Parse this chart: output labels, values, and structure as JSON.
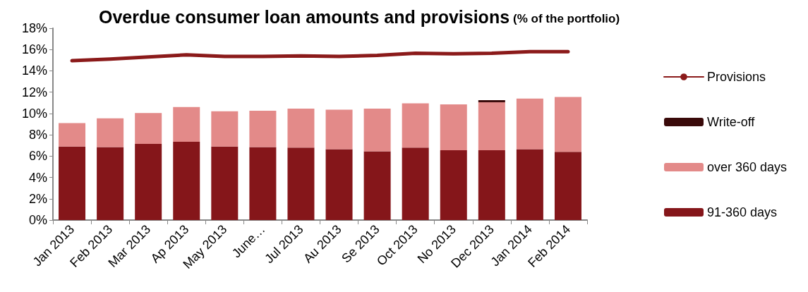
{
  "chart_data": {
    "type": "bar",
    "title": "Overdue consumer loan amounts and provisions",
    "subtitle": "(% of the portfolio)",
    "categories": [
      "Jan 2013",
      "Feb 2013",
      "Mar 2013",
      "Ap 2013",
      "May 2013",
      "June…",
      "Jul 2013",
      "Au 2013",
      "Se 2013",
      "Oct 2013",
      "No 2013",
      "Dec 2013",
      "Jan 2014",
      "Feb 2014"
    ],
    "stacked": true,
    "series": [
      {
        "name": "91-360 days",
        "color": "#85161a",
        "values": [
          6.9,
          6.85,
          7.15,
          7.35,
          6.9,
          6.85,
          6.8,
          6.65,
          6.45,
          6.8,
          6.55,
          6.55,
          6.65,
          6.4
        ]
      },
      {
        "name": "over 360 days",
        "color": "#e38a89",
        "values": [
          2.2,
          2.7,
          2.9,
          3.25,
          3.3,
          3.4,
          3.65,
          3.7,
          4.0,
          4.15,
          4.3,
          4.5,
          4.75,
          5.15
        ]
      },
      {
        "name": "Write-off",
        "color": "#3a0a0a",
        "values": [
          null,
          null,
          null,
          null,
          null,
          null,
          null,
          null,
          null,
          null,
          null,
          0.2,
          null,
          null
        ]
      },
      {
        "name": "Provisions",
        "type": "line",
        "color": "#8b1a1a",
        "values": [
          14.95,
          15.1,
          15.3,
          15.5,
          15.35,
          15.35,
          15.4,
          15.35,
          15.45,
          15.65,
          15.6,
          15.65,
          15.8,
          15.8
        ]
      }
    ],
    "ylim": [
      0,
      18
    ],
    "yticks": [
      {
        "value": 0,
        "label": "0%"
      },
      {
        "value": 2,
        "label": "2%"
      },
      {
        "value": 4,
        "label": "4%"
      },
      {
        "value": 6,
        "label": "6%"
      },
      {
        "value": 8,
        "label": "8%"
      },
      {
        "value": 10,
        "label": "10%"
      },
      {
        "value": 12,
        "label": "12%"
      },
      {
        "value": 14,
        "label": "14%"
      },
      {
        "value": 16,
        "label": "16%"
      },
      {
        "value": 18,
        "label": "18%"
      }
    ],
    "grid": false,
    "legend": "right",
    "marker": "none",
    "line_style": "solid"
  }
}
